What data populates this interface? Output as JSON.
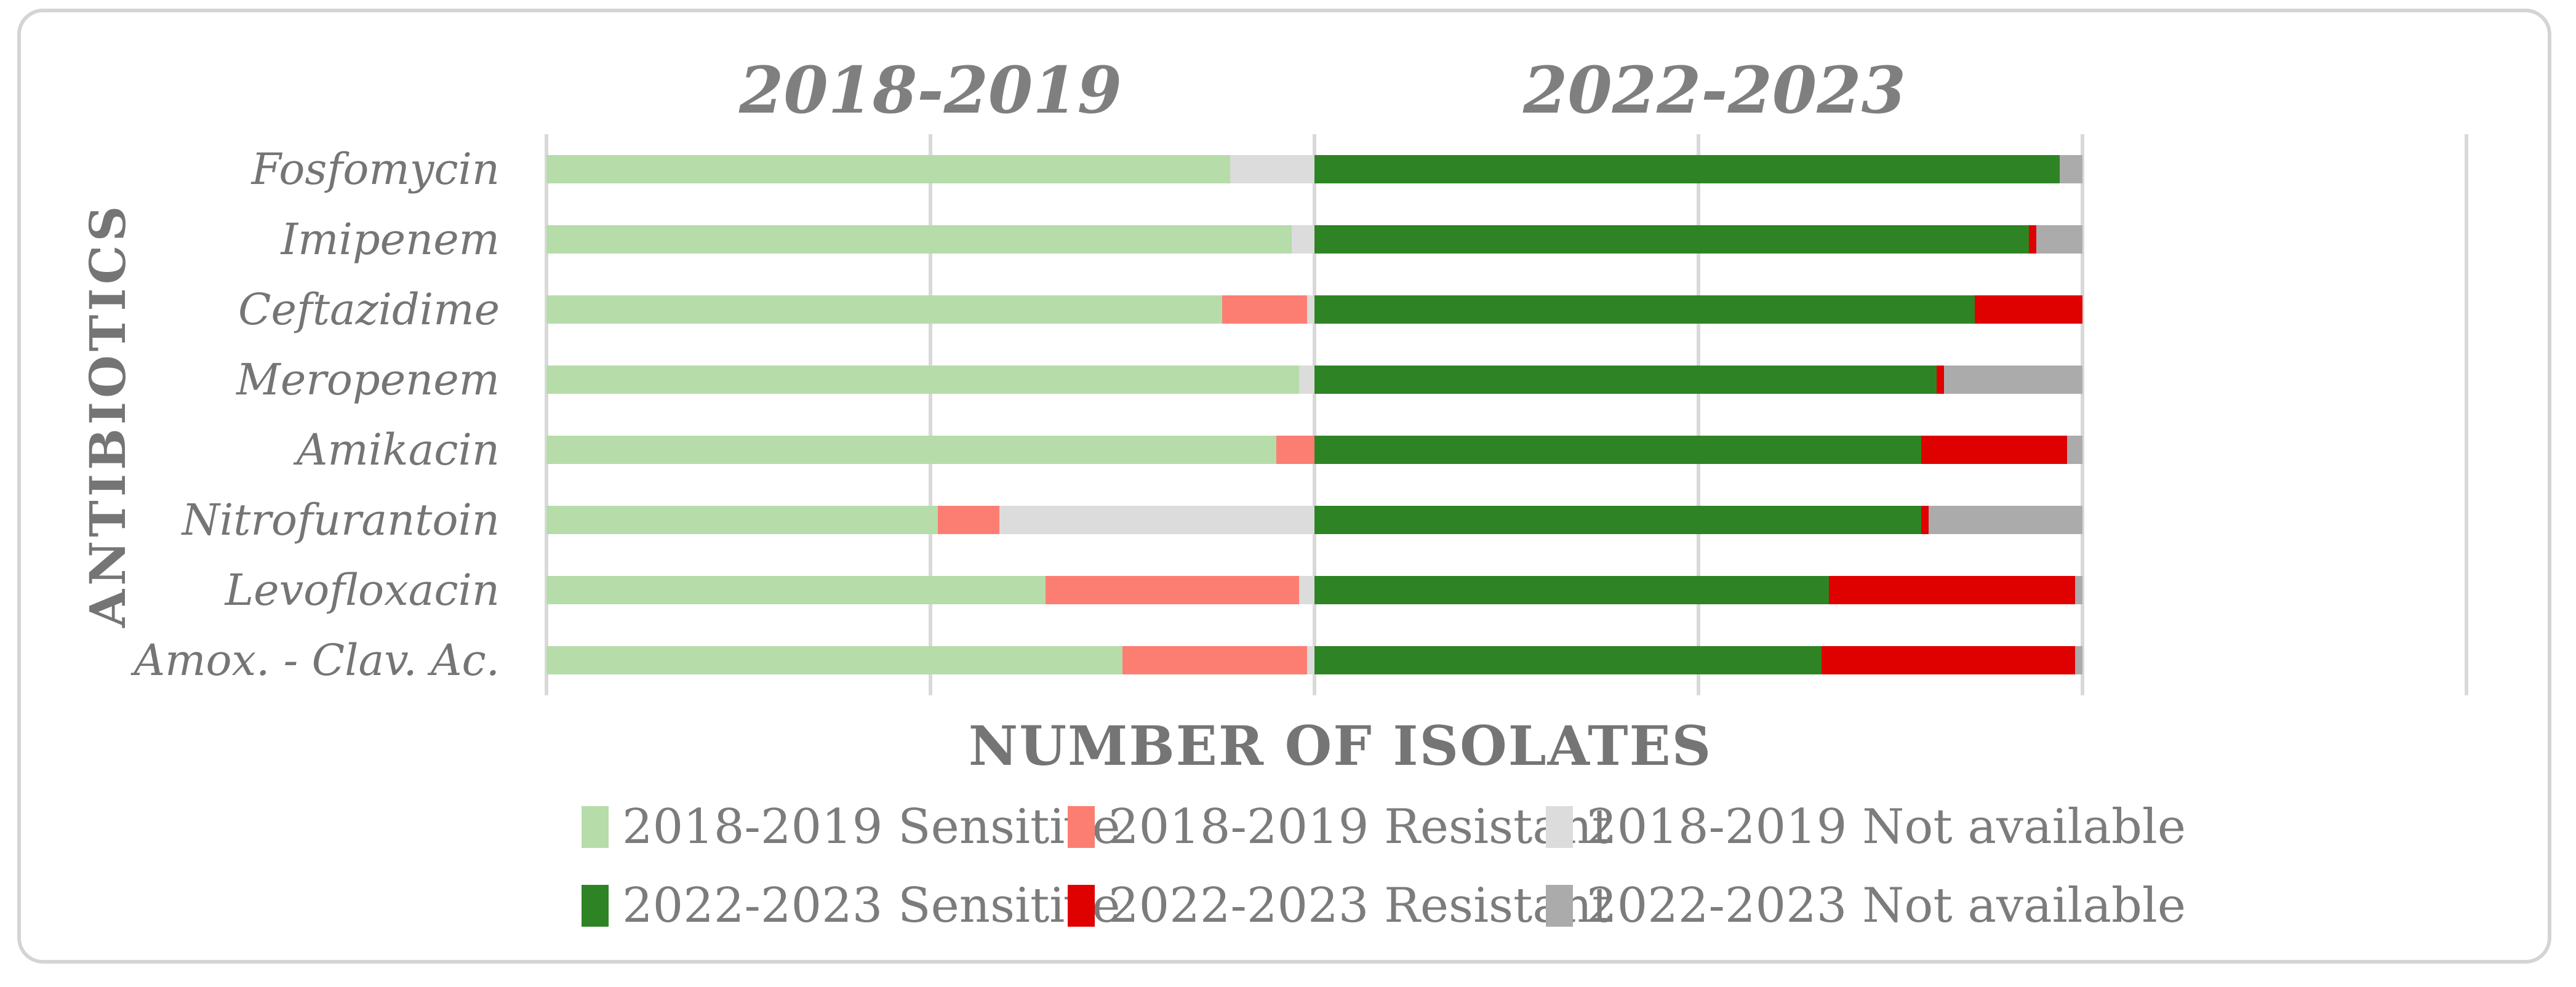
{
  "figure": {
    "background": "#ffffff",
    "border_color": "#d4d4d4",
    "text_color": "#757575",
    "gridline_color": "#d9d9d9"
  },
  "chart_data": {
    "type": "bar",
    "orientation": "horizontal",
    "stacked": true,
    "title_left": "2018-2019",
    "title_right": "2022-2023",
    "xlabel": "NUMBER OF ISOLATES",
    "ylabel": "ANTIBIOTICS",
    "grid": true,
    "legend_position": "bottom",
    "x_axis": {
      "min": 0,
      "max": 250,
      "gridline_interval": 50,
      "tick_labels_visible": false,
      "note": "No numeric tick labels are printed. The 2018-2019 stack spans 0-100 and the 2022-2023 stack is appended, spanning 100-200; values are estimated from bar lengths (each period totals 100 isolates)."
    },
    "categories": [
      "Fosfomycin",
      "Imipenem",
      "Ceftazidime",
      "Meropenem",
      "Amikacin",
      "Nitrofurantoin",
      "Levofloxacin",
      "Amox. - Clav. Ac."
    ],
    "series": [
      {
        "name": "2018-2019 Sensitive",
        "color": "#b6dcaa",
        "values": [
          89,
          97,
          88,
          98,
          95,
          51,
          65,
          75
        ]
      },
      {
        "name": "2018-2019 Resistant",
        "color": "#fc7e72",
        "values": [
          0,
          0,
          11,
          0,
          5,
          8,
          33,
          24
        ]
      },
      {
        "name": "2018-2019 Not available",
        "color": "#dcdcdc",
        "values": [
          11,
          3,
          1,
          2,
          0,
          41,
          2,
          1
        ]
      },
      {
        "name": "2022-2023 Sensitive",
        "color": "#2e8424",
        "values": [
          97,
          93,
          86,
          81,
          79,
          79,
          67,
          66
        ]
      },
      {
        "name": "2022-2023 Resistant",
        "color": "#df0000",
        "values": [
          0,
          1,
          14,
          1,
          19,
          1,
          32,
          33
        ]
      },
      {
        "name": "2022-2023 Not available",
        "color": "#ababab",
        "values": [
          3,
          6,
          0,
          18,
          2,
          20,
          1,
          1
        ]
      }
    ],
    "legend_rows": [
      [
        "2018-2019 Sensitive",
        "2018-2019 Resistant",
        "2018-2019 Not available"
      ],
      [
        "2022-2023 Sensitive",
        "2022-2023 Resistant",
        "2022-2023 Not available"
      ]
    ]
  }
}
